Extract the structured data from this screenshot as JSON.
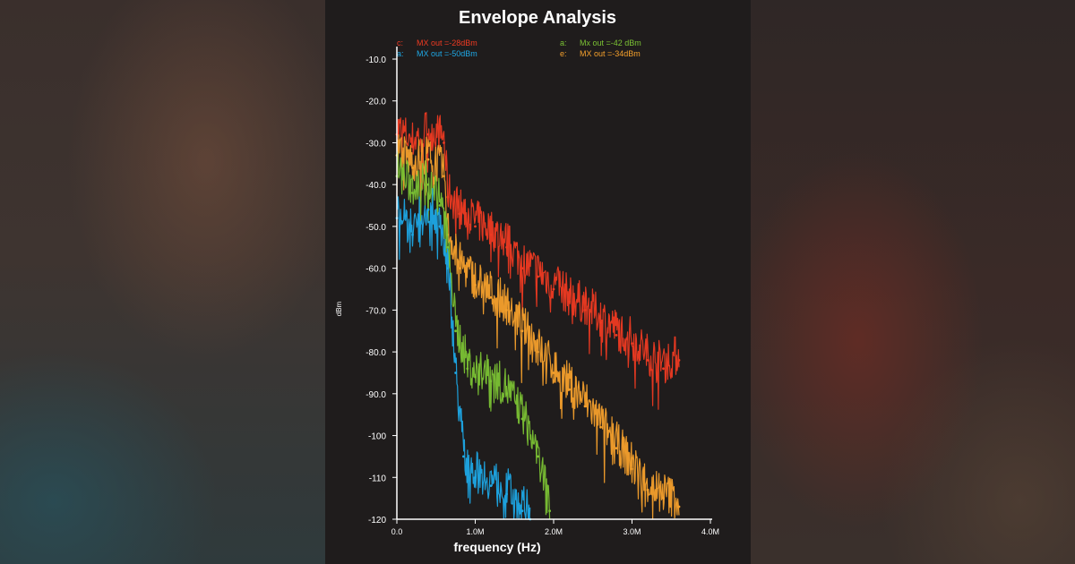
{
  "chart_data": {
    "type": "line",
    "title": "Envelope Analysis",
    "xlabel": "frequency (Hz)",
    "ylabel": "dBm",
    "xlim": [
      0,
      4
    ],
    "ylim": [
      -120,
      -10
    ],
    "x_ticks": [
      "0.0",
      "1.0M",
      "2.0M",
      "3.0M",
      "4.0M"
    ],
    "x_tick_values": [
      0,
      1,
      2,
      3,
      4
    ],
    "y_ticks": [
      "-10.0",
      "-20.0",
      "-30.0",
      "-40.0",
      "-50.0",
      "-60.0",
      "-70.0",
      "-80.0",
      "-90.0",
      "-100",
      "-110",
      "-120"
    ],
    "y_tick_values": [
      -10,
      -20,
      -30,
      -40,
      -50,
      -60,
      -70,
      -80,
      -90,
      -100,
      -110,
      -120
    ],
    "legend_position": "top",
    "series": [
      {
        "name": "MX out =-28dBm",
        "legend_label": "c:",
        "color": "#ee3a22",
        "x": [
          0.0,
          0.2,
          0.4,
          0.6,
          0.65,
          0.8,
          1.0,
          1.2,
          1.4,
          1.6,
          1.8,
          2.0,
          2.2,
          2.4,
          2.6,
          2.8,
          3.0,
          3.2,
          3.4,
          3.6
        ],
        "values": [
          -28,
          -31,
          -28,
          -30,
          -43,
          -47,
          -50,
          -52,
          -55,
          -60,
          -62,
          -65,
          -68,
          -70,
          -73,
          -76,
          -78,
          -82,
          -84,
          -82
        ]
      },
      {
        "name": "MX out =-34dBm",
        "legend_label": "e:",
        "color": "#f5a02c",
        "x": [
          0.0,
          0.2,
          0.4,
          0.6,
          0.65,
          0.8,
          1.0,
          1.2,
          1.4,
          1.6,
          1.8,
          2.0,
          2.2,
          2.4,
          2.6,
          2.8,
          3.0,
          3.2,
          3.4,
          3.6
        ],
        "values": [
          -33,
          -36,
          -34,
          -38,
          -52,
          -60,
          -64,
          -67,
          -70,
          -75,
          -80,
          -85,
          -89,
          -93,
          -98,
          -103,
          -108,
          -113,
          -115,
          -117
        ]
      },
      {
        "name": "Mx out =-42 dBm",
        "legend_label": "a:",
        "color": "#7bc234",
        "x": [
          0.0,
          0.2,
          0.4,
          0.55,
          0.65,
          0.75,
          0.9,
          1.0,
          1.2,
          1.4,
          1.6,
          1.8,
          1.95
        ],
        "values": [
          -38,
          -42,
          -40,
          -45,
          -55,
          -75,
          -84,
          -86,
          -87,
          -90,
          -96,
          -105,
          -118
        ]
      },
      {
        "name": "MX out =-50dBm",
        "legend_label": "a:",
        "color": "#1ea8e6",
        "x": [
          0.0,
          0.2,
          0.4,
          0.55,
          0.65,
          0.75,
          0.85,
          1.0,
          1.2,
          1.4,
          1.6,
          1.7
        ],
        "values": [
          -48,
          -52,
          -46,
          -50,
          -60,
          -85,
          -105,
          -110,
          -112,
          -114,
          -118,
          -120
        ]
      }
    ]
  }
}
